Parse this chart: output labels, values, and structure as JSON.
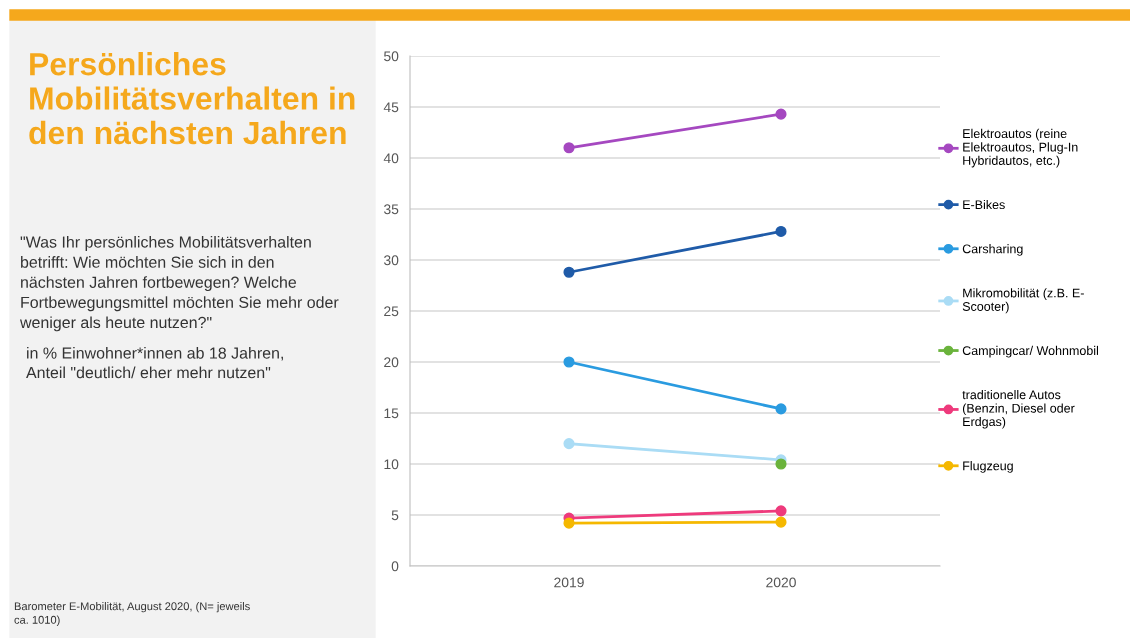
{
  "chart_data": {
    "type": "line",
    "title": "Persönliches\nMobilitätsverhalten in\nden nächsten Jahren",
    "subtitle": "\"Was Ihr persönliches Mobilitätsverhalten\nbetrifft: Wie möchten Sie sich in den\nnächsten Jahren fortbewegen? Welche\nFortbewegungsmittel möchten Sie mehr oder\nweniger als heute nutzen?\"",
    "annotations": [
      "in % Einwohner*innen ab 18 Jahren,\nAnteil \"deutlich/ eher mehr nutzen\"",
      "Barometer E-Mobilität, August 2020, (N= jeweils\nca. 1010)"
    ],
    "categories": [
      "2019",
      "2020"
    ],
    "series": [
      {
        "name": "Elektroautos (reine\nElektroautos, Plug-In\nHybridautos, etc.)",
        "color": "#a548c0",
        "values": [
          41,
          44.3
        ]
      },
      {
        "name": "E-Bikes",
        "color": "#1f5ba8",
        "values": [
          28.8,
          32.8
        ]
      },
      {
        "name": "Carsharing",
        "color": "#2a9be0",
        "values": [
          20,
          15.4
        ]
      },
      {
        "name": "Mikromobilität (z.B. E-\nScooter)",
        "color": "#aadcf5",
        "values": [
          12,
          10.4
        ]
      },
      {
        "name": "Campingcar/ Wohnmobil",
        "color": "#6ab33c",
        "values": [
          null,
          10
        ]
      },
      {
        "name": "traditionelle Autos\n(Benzin, Diesel oder\nErdgas)",
        "color": "#ee3a7c",
        "values": [
          4.7,
          5.4
        ]
      },
      {
        "name": "Flugzeug",
        "color": "#f5b800",
        "values": [
          4.2,
          4.3
        ]
      }
    ],
    "ylim": [
      0,
      50
    ],
    "yticks": [
      0,
      5,
      10,
      15,
      20,
      25,
      30,
      35,
      40,
      45,
      50
    ],
    "grid": "y",
    "legend": "right",
    "marker": "circle"
  }
}
